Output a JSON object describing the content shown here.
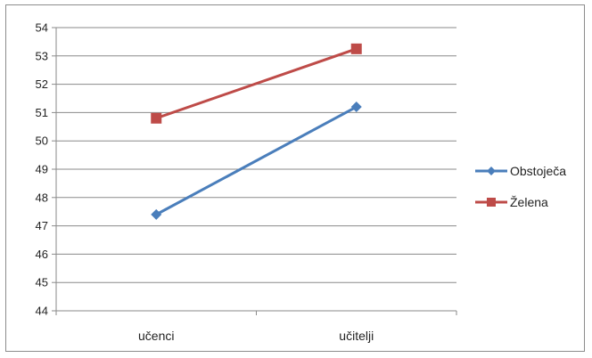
{
  "chart_data": {
    "type": "line",
    "title": "",
    "xlabel": "",
    "ylabel": "",
    "categories": [
      "učenci",
      "učitelji"
    ],
    "ylim": [
      44,
      54
    ],
    "ytick_step": 1,
    "grid": true,
    "legend_placement": "right",
    "series": [
      {
        "name": "Obstoječa",
        "values": [
          47.4,
          51.2
        ],
        "color": "#4a7ebb",
        "marker": "diamond"
      },
      {
        "name": "Želena",
        "values": [
          50.8,
          53.25
        ],
        "color": "#be4b48",
        "marker": "square"
      }
    ]
  }
}
